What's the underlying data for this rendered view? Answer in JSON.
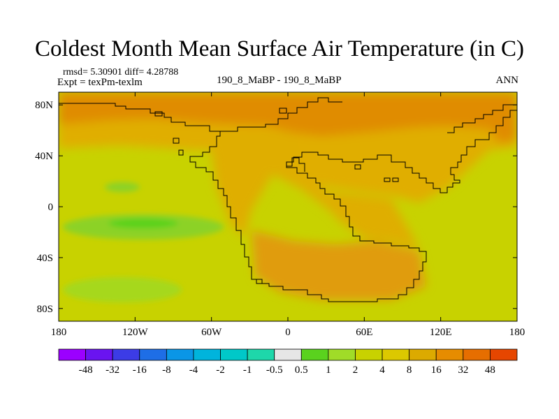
{
  "chart_data": {
    "type": "heatmap",
    "title": "Coldest Month Mean Surface Air Temperature (in C)",
    "stats": "rmsd= 5.30901 diff= 4.28788",
    "experiment": "Expt = texPm-texlm",
    "runs": "190_8_MaBP - 190_8_MaBP",
    "season": "ANN",
    "x_ticks": [
      {
        "value": -180,
        "label": "180"
      },
      {
        "value": -120,
        "label": "120W"
      },
      {
        "value": -60,
        "label": "60W"
      },
      {
        "value": 0,
        "label": "0"
      },
      {
        "value": 60,
        "label": "60E"
      },
      {
        "value": 120,
        "label": "120E"
      },
      {
        "value": 180,
        "label": "180"
      }
    ],
    "y_ticks": [
      {
        "value": 80,
        "label": "80N"
      },
      {
        "value": 40,
        "label": "40N"
      },
      {
        "value": 0,
        "label": "0"
      },
      {
        "value": -40,
        "label": "40S"
      },
      {
        "value": -80,
        "label": "80S"
      }
    ],
    "xlim": [
      -180,
      180
    ],
    "ylim": [
      -90,
      90
    ],
    "colorbar": {
      "colors": [
        "#9b00ff",
        "#6a14f0",
        "#3c3ce6",
        "#1e6ee6",
        "#0a96e6",
        "#00b4dc",
        "#00c8c8",
        "#1ed7aa",
        "#e6e6e6",
        "#5ad21e",
        "#a0dc28",
        "#c8d200",
        "#dcc800",
        "#dcaa00",
        "#e68c00",
        "#e66e00",
        "#e64600"
      ],
      "labels": [
        "-48",
        "-32",
        "-16",
        "-8",
        "-4",
        "-2",
        "-1",
        "-0.5",
        "0.5",
        "1",
        "2",
        "4",
        "8",
        "16",
        "32",
        "48"
      ]
    },
    "regions": [
      {
        "name": "global background",
        "value": 3,
        "color": "#c8d200"
      },
      {
        "name": "high northern latitudes",
        "value": 14,
        "color": "#e08c00"
      },
      {
        "name": "northern mid-latitudes",
        "value": 8,
        "color": "#e0ae00"
      },
      {
        "name": "pangea interior",
        "value": 7,
        "color": "#dfae00"
      },
      {
        "name": "southern pangea",
        "value": 10,
        "color": "#e09c0a"
      },
      {
        "name": "tropical central pacific",
        "value": 1.5,
        "color": "#8cd228"
      },
      {
        "name": "southern pacific",
        "value": 2,
        "color": "#a6d81e"
      }
    ]
  }
}
